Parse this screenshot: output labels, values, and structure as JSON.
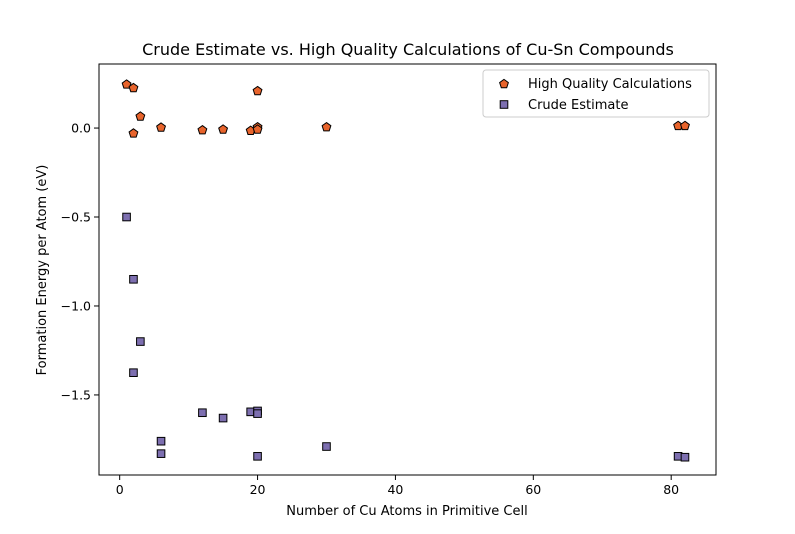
{
  "chart_data": {
    "type": "scatter",
    "title": "Crude Estimate vs. High Quality Calculations of Cu-Sn Compounds",
    "xlabel": "Number of Cu Atoms in Primitive Cell",
    "ylabel": "Formation Energy per Atom (eV)",
    "xlim": [
      -3,
      86.5
    ],
    "ylim": [
      -1.95,
      0.36
    ],
    "xticks": [
      0,
      20,
      40,
      60,
      80
    ],
    "xtick_labels": [
      "0",
      "20",
      "40",
      "60",
      "80"
    ],
    "yticks": [
      0.0,
      -0.5,
      -1.0,
      -1.5
    ],
    "ytick_labels": [
      "0.0",
      "−0.5",
      "−1.0",
      "−1.5"
    ],
    "grid": false,
    "legend_position": "top-right",
    "series": [
      {
        "name": "High Quality Calculations",
        "marker": "pentagon",
        "color": "#e8642c",
        "points": [
          [
            1,
            0.245
          ],
          [
            2,
            0.225
          ],
          [
            2,
            -0.03
          ],
          [
            3,
            0.065
          ],
          [
            6,
            0.003
          ],
          [
            12,
            -0.012
          ],
          [
            15,
            -0.008
          ],
          [
            19,
            -0.015
          ],
          [
            20,
            0.208
          ],
          [
            20,
            0.005
          ],
          [
            20,
            -0.008
          ],
          [
            30,
            0.005
          ],
          [
            81,
            0.012
          ],
          [
            82,
            0.012
          ]
        ]
      },
      {
        "name": "Crude Estimate",
        "marker": "square",
        "color": "#7d6fb0",
        "points": [
          [
            1,
            -0.5
          ],
          [
            2,
            -0.85
          ],
          [
            2,
            -1.375
          ],
          [
            3,
            -1.2
          ],
          [
            6,
            -1.76
          ],
          [
            6,
            -1.83
          ],
          [
            12,
            -1.6
          ],
          [
            15,
            -1.63
          ],
          [
            19,
            -1.595
          ],
          [
            20,
            -1.59
          ],
          [
            20,
            -1.605
          ],
          [
            20,
            -1.845
          ],
          [
            30,
            -1.79
          ],
          [
            81,
            -1.845
          ],
          [
            82,
            -1.85
          ]
        ]
      }
    ]
  }
}
